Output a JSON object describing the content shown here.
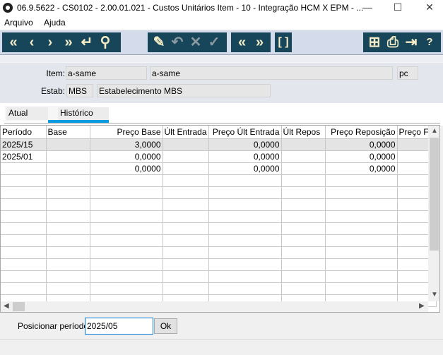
{
  "window": {
    "title": "06.9.5622 - CS0102 - 2.00.01.021 - Custos Unitários Item - 10 - Integração HCM X EPM - ...",
    "minimize": "—",
    "maximize": "☐",
    "close": "✕"
  },
  "menu": [
    "Arquivo",
    "Ajuda"
  ],
  "toolbar": {
    "nav": [
      {
        "icon": "first-icon",
        "glyph": "«"
      },
      {
        "icon": "prev-icon",
        "glyph": "‹"
      },
      {
        "icon": "next-icon",
        "glyph": "›"
      },
      {
        "icon": "last-icon",
        "glyph": "»"
      },
      {
        "icon": "goto-icon",
        "glyph": "↵"
      },
      {
        "icon": "search-icon",
        "glyph": "⚲"
      }
    ],
    "edit": [
      {
        "icon": "edit-icon",
        "glyph": "✎"
      },
      {
        "icon": "undo-icon",
        "glyph": "↶"
      },
      {
        "icon": "cancel-icon",
        "glyph": "✕"
      },
      {
        "icon": "confirm-icon",
        "glyph": "✓"
      }
    ],
    "page": [
      {
        "icon": "first-page-icon",
        "glyph": "«"
      },
      {
        "icon": "last-page-icon",
        "glyph": "»"
      }
    ],
    "zoom": [
      {
        "icon": "brackets-icon",
        "glyph": "[ ]"
      }
    ],
    "right": [
      {
        "icon": "tree-icon",
        "glyph": "⊞"
      },
      {
        "icon": "print-icon",
        "glyph": "⎙"
      },
      {
        "icon": "exit-icon",
        "glyph": "⇥"
      },
      {
        "icon": "help-icon",
        "glyph": "?"
      }
    ]
  },
  "header": {
    "item_label": "Item:",
    "item_code": "a-same",
    "item_desc": "a-same",
    "unit": "pc",
    "estab_label": "Estab:",
    "estab_code": "MBS",
    "estab_desc": "Estabelecimento MBS"
  },
  "tabs": [
    {
      "label": "Atual",
      "active": false
    },
    {
      "label": "Histórico",
      "active": true
    }
  ],
  "grid": {
    "columns": [
      "Período",
      "Base",
      "Preço Base",
      "Últ Entrada",
      "Preço Últ Entrada",
      "Últ Repos",
      "Preço Reposição",
      "Preço Fis"
    ],
    "rows": [
      [
        "2025/15",
        "",
        "3,0000",
        "",
        "0,0000",
        "",
        "0,0000",
        ""
      ],
      [
        "2025/01",
        "",
        "0,0000",
        "",
        "0,0000",
        "",
        "0,0000",
        ""
      ],
      [
        "",
        "",
        "0,0000",
        "",
        "0,0000",
        "",
        "0,0000",
        ""
      ]
    ]
  },
  "footer": {
    "position_label": "Posicionar período:",
    "position_value": "2025/05",
    "ok_label": "Ok"
  },
  "colors": {
    "toolbar_button": "#174559",
    "toolbar_glyph": "#f3ecc6",
    "tab_active": "#0a9ae0",
    "input_focus": "#0078d7"
  }
}
